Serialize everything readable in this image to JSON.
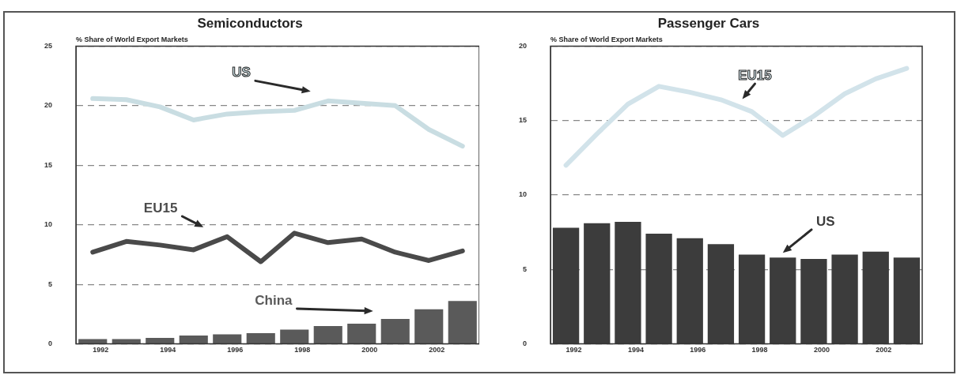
{
  "chart_data": [
    {
      "type": "line",
      "title": "Semiconductors",
      "ylabel": "% Share of World Export Markets",
      "categories": [
        "1992",
        null,
        "1994",
        null,
        "1996",
        null,
        "1998",
        null,
        "2000",
        null,
        "2002",
        null
      ],
      "ylim": [
        0,
        25
      ],
      "yticks": [
        0,
        5,
        10,
        15,
        20,
        25
      ],
      "grid": "y",
      "legend": false,
      "series": [
        {
          "name": "US",
          "color": "#c9dde2",
          "values": [
            20.6,
            20.5,
            19.9,
            18.8,
            19.3,
            19.5,
            19.6,
            20.4,
            20.2,
            20.0,
            18.0,
            16.6
          ]
        },
        {
          "name": "EU15",
          "color": "#4a4a4a",
          "values": [
            7.7,
            8.6,
            8.3,
            7.9,
            9.0,
            6.9,
            9.3,
            8.5,
            8.8,
            7.7,
            7.0,
            7.8
          ]
        },
        {
          "name": "China",
          "type": "bar",
          "color": "#5a5a5a",
          "values": [
            0.4,
            0.4,
            0.5,
            0.7,
            0.8,
            0.9,
            1.2,
            1.5,
            1.7,
            2.1,
            2.9,
            3.6
          ]
        }
      ]
    },
    {
      "type": "bar",
      "title": "Passenger Cars",
      "ylabel": "% Share of World Export Markets",
      "categories": [
        "1992",
        null,
        "1994",
        null,
        "1996",
        null,
        "1998",
        null,
        "2000",
        null,
        "2002",
        null
      ],
      "ylim": [
        0,
        20
      ],
      "yticks": [
        0,
        5,
        10,
        15,
        20
      ],
      "grid": "y",
      "legend": false,
      "series": [
        {
          "name": "EU15",
          "type": "line",
          "color": "#d2e3ea",
          "values": [
            12.0,
            14.1,
            16.1,
            17.3,
            16.9,
            16.4,
            15.6,
            14.0,
            15.3,
            16.8,
            17.8,
            18.5
          ]
        },
        {
          "name": "US",
          "color": "#3c3c3c",
          "values": [
            7.8,
            8.1,
            8.2,
            7.4,
            7.1,
            6.7,
            6.0,
            5.8,
            5.7,
            6.0,
            6.2,
            5.8
          ]
        }
      ]
    }
  ]
}
